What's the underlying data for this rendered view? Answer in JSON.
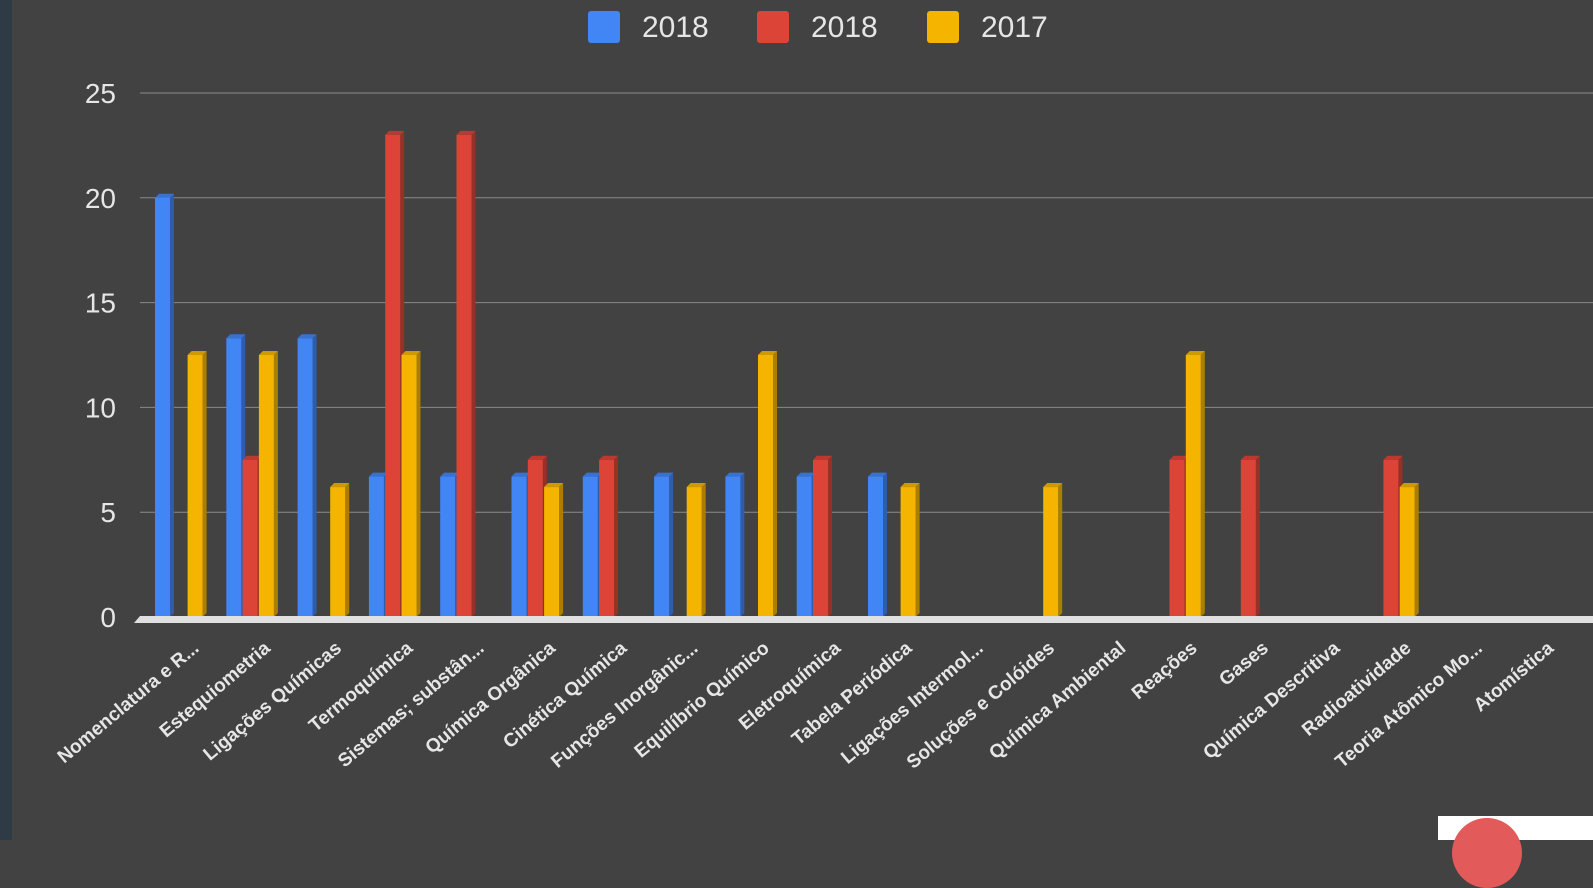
{
  "chart_data": {
    "type": "bar",
    "title": "",
    "xlabel": "",
    "ylabel": "",
    "ylim": [
      0,
      25
    ],
    "yticks": [
      0,
      5,
      10,
      15,
      20,
      25
    ],
    "grid": true,
    "legend_position": "top-center",
    "categories": [
      "Nomenclatura e R...",
      "Estequiometria",
      "Ligações Químicas",
      "Termoquímica",
      "Sistemas; substân...",
      "Química Orgânica",
      "Cinética Química",
      "Funções Inorgânic...",
      "Equilíbrio Químico",
      "Eletroquímica",
      "Tabela Periódica",
      "Ligações Intermol...",
      "Soluções e Colóides",
      "Química Ambiental",
      "Reações",
      "Gases",
      "Química Descritiva",
      "Radioatividade",
      "Teoria Atômico Mo...",
      "Atomística"
    ],
    "series": [
      {
        "name": "2018",
        "color": "#4285f4",
        "values": [
          20,
          13.3,
          13.3,
          6.7,
          6.7,
          6.7,
          6.7,
          6.7,
          6.7,
          6.7,
          6.7,
          0,
          0,
          0,
          0,
          0,
          0,
          0,
          0,
          0
        ]
      },
      {
        "name": "2018",
        "color": "#db4437",
        "values": [
          0,
          7.5,
          0,
          23,
          23,
          7.5,
          7.5,
          0,
          0,
          7.5,
          0,
          0,
          0,
          0,
          7.5,
          7.5,
          0,
          7.5,
          0,
          0
        ]
      },
      {
        "name": "2017",
        "color": "#f4b400",
        "values": [
          12.5,
          12.5,
          6.2,
          12.5,
          0,
          6.2,
          0,
          6.2,
          12.5,
          0,
          6.2,
          0,
          6.2,
          0,
          12.5,
          0,
          0,
          6.2,
          0,
          0
        ]
      }
    ]
  }
}
